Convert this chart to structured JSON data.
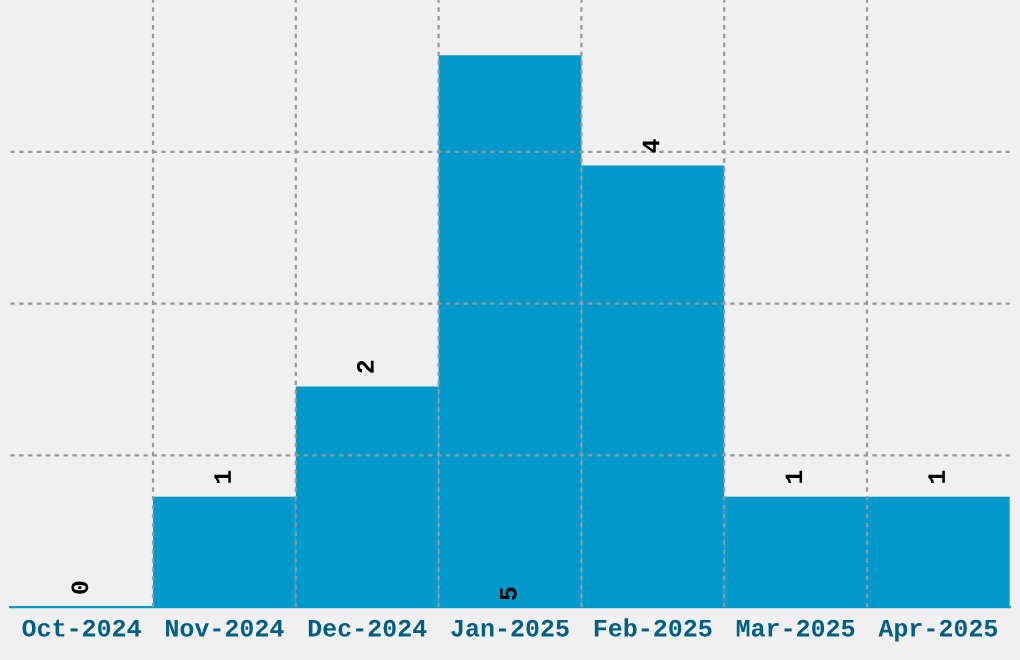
{
  "chart_data": {
    "type": "bar",
    "categories": [
      "Oct-2024",
      "Nov-2024",
      "Dec-2024",
      "Jan-2025",
      "Feb-2025",
      "Mar-2025",
      "Apr-2025"
    ],
    "values": [
      0,
      1,
      2,
      5,
      4,
      1,
      1
    ],
    "color": "#0099cc",
    "data_labels": true,
    "ylim": [
      0,
      5.5
    ],
    "yticks": [
      {
        "value": 1.375,
        "label": null
      },
      {
        "value": 2.75,
        "label": null
      },
      {
        "value": 4.125,
        "label": null
      }
    ],
    "tick_labels": "x",
    "grid": true
  }
}
